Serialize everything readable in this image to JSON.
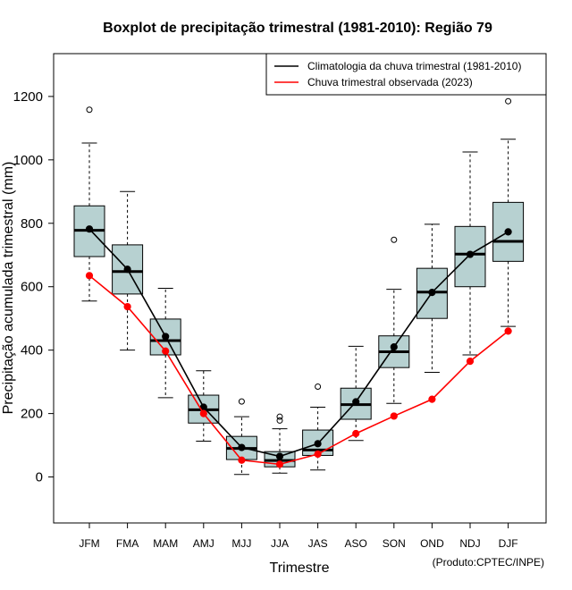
{
  "chart_data": {
    "type": "boxplot",
    "title": "Boxplot de precipitação trimestral (1981-2010): Região 79",
    "xlabel": "Trimestre",
    "ylabel": "Precipitação acumulada trimestral (mm)",
    "source": "(Produto:CPTEC/INPE)",
    "ylim": [
      -145,
      1335
    ],
    "yticks": [
      0,
      200,
      400,
      600,
      800,
      1000,
      1200
    ],
    "categories": [
      "JFM",
      "FMA",
      "MAM",
      "AMJ",
      "MJJ",
      "JJA",
      "JAS",
      "ASO",
      "SON",
      "OND",
      "NDJ",
      "DJF"
    ],
    "boxes": [
      {
        "min": 555,
        "q1": 695,
        "median": 778,
        "q3": 855,
        "max": 1053,
        "outliers": [
          1158
        ]
      },
      {
        "min": 400,
        "q1": 577,
        "median": 648,
        "q3": 732,
        "max": 900,
        "outliers": []
      },
      {
        "min": 250,
        "q1": 385,
        "median": 430,
        "q3": 498,
        "max": 595,
        "outliers": []
      },
      {
        "min": 113,
        "q1": 170,
        "median": 212,
        "q3": 258,
        "max": 335,
        "outliers": []
      },
      {
        "min": 8,
        "q1": 55,
        "median": 90,
        "q3": 128,
        "max": 190,
        "outliers": [
          238
        ]
      },
      {
        "min": 12,
        "q1": 32,
        "median": 52,
        "q3": 80,
        "max": 152,
        "outliers": [
          178,
          190
        ]
      },
      {
        "min": 22,
        "q1": 68,
        "median": 85,
        "q3": 148,
        "max": 220,
        "outliers": [
          285
        ]
      },
      {
        "min": 115,
        "q1": 182,
        "median": 228,
        "q3": 280,
        "max": 412,
        "outliers": []
      },
      {
        "min": 232,
        "q1": 345,
        "median": 395,
        "q3": 445,
        "max": 592,
        "outliers": [
          748
        ]
      },
      {
        "min": 330,
        "q1": 500,
        "median": 583,
        "q3": 658,
        "max": 797,
        "outliers": []
      },
      {
        "min": 385,
        "q1": 600,
        "median": 703,
        "q3": 790,
        "max": 1025,
        "outliers": []
      },
      {
        "min": 475,
        "q1": 680,
        "median": 743,
        "q3": 866,
        "max": 1065,
        "outliers": [
          1185
        ]
      }
    ],
    "series": [
      {
        "name": "Climatologia da chuva trimestral (1981-2010)",
        "color": "#000000",
        "values": [
          782,
          655,
          443,
          220,
          93,
          65,
          105,
          237,
          410,
          582,
          702,
          773
        ]
      },
      {
        "name": "Chuva trimestral observada (2023)",
        "color": "#ff0000",
        "values": [
          635,
          537,
          397,
          200,
          53,
          40,
          72,
          137,
          192,
          245,
          365,
          460
        ]
      }
    ],
    "box_fill": "#b7d1d1",
    "legend_position": "top-right",
    "grid": false
  }
}
